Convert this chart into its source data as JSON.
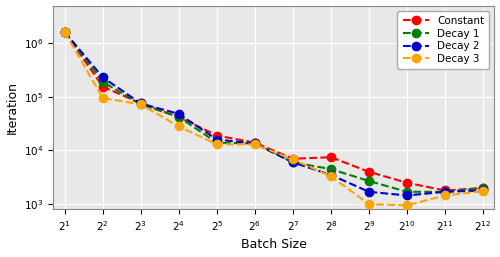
{
  "batch_sizes": [
    2,
    4,
    8,
    16,
    32,
    64,
    128,
    256,
    512,
    1024,
    2048,
    4096
  ],
  "constant": [
    1600000,
    155000,
    75000,
    42000,
    19000,
    14000,
    7000,
    7500,
    4000,
    2500,
    1800,
    2000
  ],
  "decay1": [
    1600000,
    190000,
    72000,
    42000,
    14000,
    13500,
    6000,
    4500,
    2700,
    1700,
    1700,
    2000
  ],
  "decay2": [
    1600000,
    230000,
    75000,
    48000,
    16000,
    13500,
    6000,
    3500,
    1700,
    1450,
    1700,
    1800
  ],
  "decay3": [
    1600000,
    95000,
    72000,
    28000,
    13000,
    13000,
    6800,
    3300,
    1000,
    950,
    1450,
    1750
  ],
  "colors": {
    "constant": "#ff0000",
    "decay1": "#008000",
    "decay2": "#0000cc",
    "decay3": "#ffa500"
  },
  "labels": [
    "Constant",
    "Decay 1",
    "Decay 2",
    "Decay 3"
  ],
  "ylabel": "Iteration",
  "xlabel": "Batch Size",
  "bg_color": "#e8e8e8",
  "grid_color": "#ffffff",
  "fig_bg": "#ffffff",
  "marker_size": 6,
  "linewidth": 1.5,
  "ylim_low": 800,
  "ylim_high": 5000000
}
